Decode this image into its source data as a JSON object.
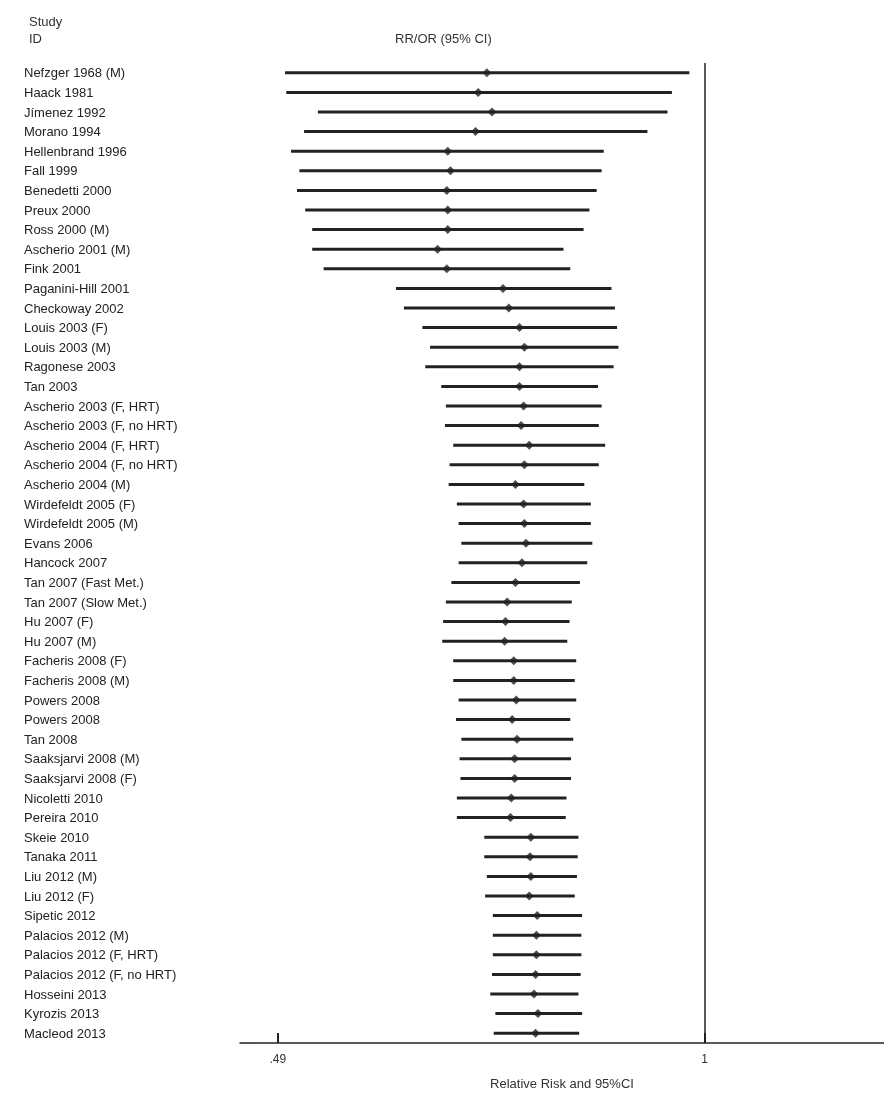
{
  "chart_data": {
    "type": "scatter",
    "orientation": "horizontal",
    "ylabel": "Study ID",
    "xlabel": "Relative Risk and 95%CI",
    "annotations": [
      "RR/OR (95% CI)"
    ],
    "categories": [
      "Nefzger 1968 (M)",
      "Haack 1981",
      "Jímenez 1992",
      "Morano 1994",
      "Hellenbrand 1996",
      "Fall 1999",
      "Benedetti 2000",
      "Preux 2000",
      "Ross 2000 (M)",
      "Ascherio 2001 (M)",
      "Fink 2001",
      "Paganini-Hill 2001",
      "Checkoway 2002",
      "Louis 2003 (F)",
      "Louis 2003 (M)",
      "Ragonese 2003",
      "Tan 2003",
      "Ascherio 2003 (F, HRT)",
      "Ascherio 2003 (F, no HRT)",
      "Ascherio 2004 (F, HRT)",
      "Ascherio 2004 (F, no HRT)",
      "Ascherio 2004 (M)",
      "Wirdefeldt 2005 (F)",
      "Wirdefeldt 2005 (M)",
      "Evans 2006",
      "Hancock 2007",
      "Tan 2007 (Fast Met.)",
      "Tan 2007 (Slow Met.)",
      "Hu 2007 (F)",
      "Hu 2007 (M)",
      "Facheris 2008 (F)",
      "Facheris 2008 (M)",
      "Powers 2008",
      "Powers 2008",
      "Tan 2008",
      "Saaksjarvi 2008 (M)",
      "Saaksjarvi 2008 (F)",
      "Nicoletti 2010",
      "Pereira 2010",
      "Skeie 2010",
      "Tanaka 2011",
      "Liu 2012 (M)",
      "Liu 2012 (F)",
      "Sipetic 2012",
      "Palacios 2012 (M)",
      "Palacios 2012 (F, HRT)",
      "Palacios 2012 (F, no HRT)",
      "Hosseini 2013",
      "Kyrozis 2013",
      "Macleod 2013"
    ],
    "values": [
      0.695,
      0.685,
      0.701,
      0.682,
      0.651,
      0.654,
      0.65,
      0.651,
      0.651,
      0.64,
      0.65,
      0.714,
      0.721,
      0.734,
      0.74,
      0.734,
      0.734,
      0.739,
      0.736,
      0.746,
      0.74,
      0.729,
      0.739,
      0.74,
      0.742,
      0.737,
      0.729,
      0.719,
      0.717,
      0.716,
      0.727,
      0.727,
      0.73,
      0.725,
      0.731,
      0.728,
      0.728,
      0.724,
      0.723,
      0.748,
      0.747,
      0.748,
      0.746,
      0.756,
      0.755,
      0.755,
      0.754,
      0.752,
      0.757,
      0.754
    ],
    "errors": [
      [
        0.496,
        0.975
      ],
      [
        0.497,
        0.947
      ],
      [
        0.524,
        0.94
      ],
      [
        0.512,
        0.909
      ],
      [
        0.501,
        0.845
      ],
      [
        0.508,
        0.842
      ],
      [
        0.506,
        0.835
      ],
      [
        0.513,
        0.825
      ],
      [
        0.519,
        0.817
      ],
      [
        0.519,
        0.79
      ],
      [
        0.529,
        0.799
      ],
      [
        0.597,
        0.856
      ],
      [
        0.605,
        0.861
      ],
      [
        0.624,
        0.864
      ],
      [
        0.632,
        0.866
      ],
      [
        0.627,
        0.859
      ],
      [
        0.644,
        0.837
      ],
      [
        0.649,
        0.842
      ],
      [
        0.648,
        0.838
      ],
      [
        0.657,
        0.847
      ],
      [
        0.653,
        0.838
      ],
      [
        0.652,
        0.818
      ],
      [
        0.661,
        0.827
      ],
      [
        0.663,
        0.827
      ],
      [
        0.666,
        0.829
      ],
      [
        0.663,
        0.822
      ],
      [
        0.655,
        0.812
      ],
      [
        0.649,
        0.801
      ],
      [
        0.646,
        0.798
      ],
      [
        0.645,
        0.795
      ],
      [
        0.657,
        0.807
      ],
      [
        0.657,
        0.805
      ],
      [
        0.663,
        0.807
      ],
      [
        0.66,
        0.799
      ],
      [
        0.666,
        0.803
      ],
      [
        0.664,
        0.8
      ],
      [
        0.665,
        0.8
      ],
      [
        0.661,
        0.794
      ],
      [
        0.661,
        0.793
      ],
      [
        0.692,
        0.81
      ],
      [
        0.692,
        0.809
      ],
      [
        0.695,
        0.808
      ],
      [
        0.693,
        0.805
      ],
      [
        0.702,
        0.815
      ],
      [
        0.702,
        0.814
      ],
      [
        0.702,
        0.814
      ],
      [
        0.701,
        0.813
      ],
      [
        0.699,
        0.81
      ],
      [
        0.705,
        0.815
      ],
      [
        0.703,
        0.811
      ]
    ],
    "color": "#222222",
    "marker": "diamond",
    "log": "x",
    "grid": false,
    "xlim": [
      0.46,
      1.35
    ],
    "xticks": [
      {
        "value": 0.49,
        "label": ".49"
      },
      1
    ],
    "ref_lines": [
      {
        "axis": "x",
        "value": 1,
        "color": "#222222"
      }
    ]
  }
}
